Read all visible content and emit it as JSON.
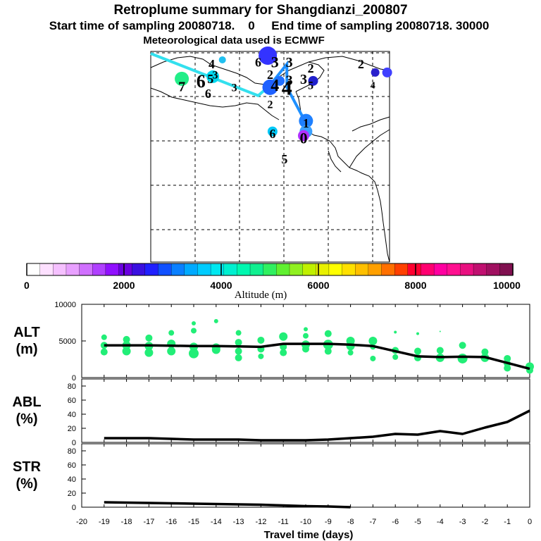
{
  "header": {
    "title": "Retroplume summary for Shangdianzi_200807",
    "subtitle": "Start time of sampling 20080718.    0     End time of sampling 20080718. 30000",
    "met_note": "Meteorological data used is ECMWF"
  },
  "colors": {
    "green_points": "#22ee77",
    "line": "#000000",
    "track1": "#33e0ee",
    "track2": "#1e90ff"
  },
  "map": {
    "labels": [
      {
        "text": "4",
        "lon": 0.255,
        "lat": 0.06,
        "size": 18
      },
      {
        "text": "6",
        "lon": 0.21,
        "lat": 0.14,
        "size": 26
      },
      {
        "text": "5",
        "lon": 0.25,
        "lat": 0.13,
        "size": 18
      },
      {
        "text": "3",
        "lon": 0.27,
        "lat": 0.11,
        "size": 16
      },
      {
        "text": "7",
        "lon": 0.13,
        "lat": 0.165,
        "size": 20
      },
      {
        "text": "6",
        "lon": 0.24,
        "lat": 0.2,
        "size": 18
      },
      {
        "text": "3",
        "lon": 0.35,
        "lat": 0.17,
        "size": 16
      },
      {
        "text": "6",
        "lon": 0.45,
        "lat": 0.05,
        "size": 18
      },
      {
        "text": "3",
        "lon": 0.52,
        "lat": 0.05,
        "size": 22
      },
      {
        "text": "3",
        "lon": 0.58,
        "lat": 0.05,
        "size": 20
      },
      {
        "text": "2",
        "lon": 0.5,
        "lat": 0.11,
        "size": 18
      },
      {
        "text": "4",
        "lon": 0.52,
        "lat": 0.16,
        "size": 24
      },
      {
        "text": "3",
        "lon": 0.58,
        "lat": 0.135,
        "size": 20
      },
      {
        "text": "4",
        "lon": 0.57,
        "lat": 0.17,
        "size": 30
      },
      {
        "text": "3",
        "lon": 0.64,
        "lat": 0.13,
        "size": 20
      },
      {
        "text": "2",
        "lon": 0.67,
        "lat": 0.08,
        "size": 18
      },
      {
        "text": "5",
        "lon": 0.67,
        "lat": 0.16,
        "size": 16
      },
      {
        "text": "2",
        "lon": 0.88,
        "lat": 0.06,
        "size": 18
      },
      {
        "text": "4",
        "lon": 0.93,
        "lat": 0.16,
        "size": 14
      },
      {
        "text": "2",
        "lon": 0.5,
        "lat": 0.25,
        "size": 16
      },
      {
        "text": "6",
        "lon": 0.51,
        "lat": 0.39,
        "size": 18
      },
      {
        "text": "1",
        "lon": 0.65,
        "lat": 0.34,
        "size": 18
      },
      {
        "text": "0",
        "lon": 0.64,
        "lat": 0.41,
        "size": 22
      },
      {
        "text": "5",
        "lon": 0.56,
        "lat": 0.51,
        "size": 18
      }
    ]
  },
  "colorbar": {
    "title": "Altitude (m)",
    "ticks": [
      "0",
      "2000",
      "4000",
      "6000",
      "8000",
      "10000"
    ],
    "colors": [
      "#ffffff",
      "#fde0ff",
      "#f5c0ff",
      "#e8a0ff",
      "#d070ff",
      "#b040ff",
      "#9010ff",
      "#6a00e0",
      "#3a10e0",
      "#2020ff",
      "#1050ff",
      "#0a80ff",
      "#00aaff",
      "#00ccff",
      "#00e8f0",
      "#00f0d0",
      "#00f8b0",
      "#10f090",
      "#30f060",
      "#60f030",
      "#90f020",
      "#c0f000",
      "#e8f000",
      "#ffff00",
      "#ffe000",
      "#ffc000",
      "#ffa000",
      "#ff7000",
      "#ff4000",
      "#ff0030",
      "#ff0070",
      "#ff00a0",
      "#ff1090",
      "#e81080",
      "#c01070",
      "#a01060",
      "#801050"
    ]
  },
  "chart_data": [
    {
      "type": "line",
      "panel": "ALT",
      "ylabel_lines": [
        "ALT",
        "(m)"
      ],
      "ylim": [
        0,
        10000
      ],
      "y_ticks": [
        "10000",
        "5000",
        "0"
      ],
      "x": [
        -19,
        -18,
        -17,
        -16,
        -15,
        -14,
        -13,
        -12,
        -11,
        -10,
        -9,
        -8,
        -7,
        -6,
        -5,
        -4,
        -3,
        -2,
        -1,
        0
      ],
      "values": [
        4400,
        4400,
        4400,
        4350,
        4300,
        4300,
        4250,
        4200,
        4600,
        4600,
        4600,
        4500,
        4300,
        3600,
        2900,
        2800,
        2850,
        2800,
        2000,
        1200
      ],
      "points": [
        [
          -19,
          5500,
          4
        ],
        [
          -19,
          4400,
          5
        ],
        [
          -19,
          3500,
          5
        ],
        [
          -18,
          5200,
          5
        ],
        [
          -18,
          4400,
          6
        ],
        [
          -18,
          3600,
          6
        ],
        [
          -17,
          5400,
          5
        ],
        [
          -17,
          4300,
          6
        ],
        [
          -17,
          3400,
          6
        ],
        [
          -16,
          6100,
          4
        ],
        [
          -16,
          4600,
          6
        ],
        [
          -16,
          3600,
          6
        ],
        [
          -15,
          7400,
          3
        ],
        [
          -15,
          6400,
          4
        ],
        [
          -15,
          4200,
          6
        ],
        [
          -15,
          3300,
          7
        ],
        [
          -14,
          7700,
          3
        ],
        [
          -14,
          4100,
          6
        ],
        [
          -14,
          3800,
          6
        ],
        [
          -13,
          6100,
          4
        ],
        [
          -13,
          4800,
          5
        ],
        [
          -13,
          3600,
          5
        ],
        [
          -13,
          2700,
          5
        ],
        [
          -12,
          5100,
          5
        ],
        [
          -12,
          3900,
          5
        ],
        [
          -12,
          2900,
          4
        ],
        [
          -11,
          5600,
          6
        ],
        [
          -11,
          4200,
          5
        ],
        [
          -11,
          3400,
          5
        ],
        [
          -10,
          6600,
          3
        ],
        [
          -10,
          5700,
          4
        ],
        [
          -10,
          4500,
          6
        ],
        [
          -10,
          3900,
          5
        ],
        [
          -9,
          6000,
          5
        ],
        [
          -9,
          4500,
          7
        ],
        [
          -9,
          3600,
          5
        ],
        [
          -8,
          5000,
          6
        ],
        [
          -8,
          4300,
          6
        ],
        [
          -8,
          3400,
          4
        ],
        [
          -7,
          5000,
          6
        ],
        [
          -7,
          4200,
          4
        ],
        [
          -7,
          2600,
          4
        ],
        [
          -6,
          6200,
          2
        ],
        [
          -6,
          3700,
          5
        ],
        [
          -6,
          2800,
          4
        ],
        [
          -5,
          6000,
          2
        ],
        [
          -5,
          3600,
          5
        ],
        [
          -5,
          2700,
          5
        ],
        [
          -4,
          6300,
          1
        ],
        [
          -4,
          3700,
          5
        ],
        [
          -4,
          2700,
          6
        ],
        [
          -3,
          4400,
          5
        ],
        [
          -3,
          2600,
          7
        ],
        [
          -2,
          3500,
          5
        ],
        [
          -2,
          2700,
          6
        ],
        [
          -1,
          2600,
          5
        ],
        [
          -1,
          1900,
          5
        ],
        [
          -1,
          1300,
          5
        ],
        [
          0,
          1500,
          6
        ],
        [
          0,
          1000,
          5
        ]
      ]
    },
    {
      "type": "line",
      "panel": "ABL",
      "ylabel_lines": [
        "ABL",
        "(%)"
      ],
      "ylim": [
        0,
        90
      ],
      "y_ticks": [
        "80",
        "60",
        "40",
        "20",
        "0"
      ],
      "x": [
        -19,
        -18,
        -17,
        -16,
        -15,
        -14,
        -13,
        -12,
        -11,
        -10,
        -9,
        -8,
        -7,
        -6,
        -5,
        -4,
        -3,
        -2,
        -1,
        0
      ],
      "values": [
        6,
        6,
        6,
        5,
        4,
        4,
        4,
        3,
        3,
        3,
        4,
        6,
        8,
        12,
        11,
        16,
        12,
        21,
        29,
        45
      ]
    },
    {
      "type": "line",
      "panel": "STR",
      "ylabel_lines": [
        "STR",
        "(%)"
      ],
      "ylim": [
        0,
        90
      ],
      "y_ticks": [
        "80",
        "60",
        "40",
        "20",
        "0"
      ],
      "x_label": "Travel time (days)",
      "x_ticks": [
        "-20",
        "-19",
        "-18",
        "-17",
        "-16",
        "-15",
        "-14",
        "-13",
        "-12",
        "-11",
        "-10",
        "-9",
        "-8",
        "-7",
        "-6",
        "-5",
        "-4",
        "-3",
        "-2",
        "-1",
        "0"
      ],
      "x": [
        -19,
        -18,
        -17,
        -16,
        -15,
        -14,
        -13,
        -12,
        -11,
        -10,
        -9,
        -8
      ],
      "values": [
        7,
        6.5,
        6,
        5.5,
        5,
        4.5,
        4,
        3.5,
        2.5,
        1.5,
        1,
        0
      ]
    }
  ]
}
